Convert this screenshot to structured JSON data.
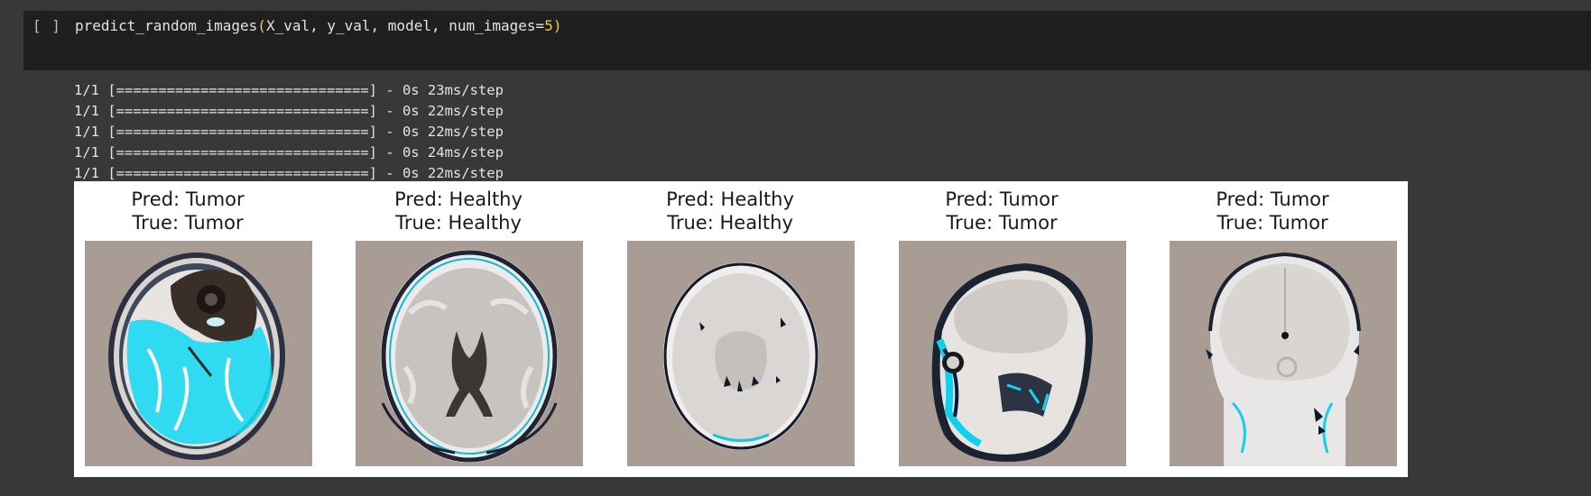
{
  "cell": {
    "run_label": "[ ]",
    "code": {
      "function": "predict_random_images",
      "open_paren": "(",
      "args": "X_val, y_val, model, num_images=",
      "num_value": "5",
      "close_paren": ")"
    }
  },
  "output": {
    "log_lines": [
      "1/1 [==============================] - 0s 23ms/step",
      "1/1 [==============================] - 0s 22ms/step",
      "1/1 [==============================] - 0s 22ms/step",
      "1/1 [==============================] - 0s 24ms/step",
      "1/1 [==============================] - 0s 22ms/step"
    ]
  },
  "figure": {
    "panels": [
      {
        "pred": "Pred: Tumor",
        "true": "True: Tumor"
      },
      {
        "pred": "Pred: Healthy",
        "true": "True: Healthy"
      },
      {
        "pred": "Pred: Healthy",
        "true": "True: Healthy"
      },
      {
        "pred": "Pred: Tumor",
        "true": "True: Tumor"
      },
      {
        "pred": "Pred: Tumor",
        "true": "True: Tumor"
      }
    ]
  },
  "colors": {
    "page_bg": "#383838",
    "cell_bg": "#1f1f1f",
    "paren": "#f2c94c",
    "scan_bg": "#a89c95",
    "highlight": "#00e5ff"
  }
}
